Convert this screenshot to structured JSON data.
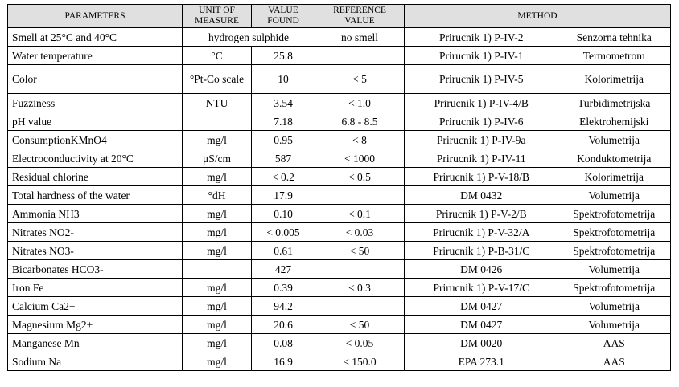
{
  "headers": {
    "parameters": "PARAMETERS",
    "unit": "UNIT OF MEASURE",
    "value": "VALUE FOUND",
    "reference": "REFERENCE VALUE",
    "method": "METHOD"
  },
  "rows": [
    {
      "param": "Smell at 25°C and 40°C",
      "unit": "hydrogen sulphide",
      "value": "",
      "ref": "no smell",
      "method_ref": "Prirucnik 1) P-IV-2",
      "technique": "Senzorna tehnika"
    },
    {
      "param": "Water temperature",
      "unit": "°C",
      "value": "25.8",
      "ref": "",
      "method_ref": "Prirucnik 1) P-IV-1",
      "technique": "Termometrom"
    },
    {
      "param": "Color",
      "unit": "°Pt-Co scale",
      "value": "10",
      "ref": "< 5",
      "method_ref": "Prirucnik 1) P-IV-5",
      "technique": "Kolorimetrija"
    },
    {
      "param": "Fuzziness",
      "unit": "NTU",
      "value": "3.54",
      "ref": "< 1.0",
      "method_ref": "Prirucnik 1) P-IV-4/B",
      "technique": "Turbidimetrijska"
    },
    {
      "param": "pH value",
      "unit": "",
      "value": "7.18",
      "ref": "6.8 - 8.5",
      "method_ref": "Prirucnik 1) P-IV-6",
      "technique": "Elektrohemijski"
    },
    {
      "param": "ConsumptionKMnO4",
      "unit": "mg/l",
      "value": "0.95",
      "ref": "< 8",
      "method_ref": "Prirucnik 1) P-IV-9a",
      "technique": "Volumetrija"
    },
    {
      "param": "Electroconductivity at 20°C",
      "unit": "μS/cm",
      "value": "587",
      "ref": "< 1000",
      "method_ref": "Prirucnik 1) P-IV-11",
      "technique": "Konduktometrija"
    },
    {
      "param": "Residual chlorine",
      "unit": "mg/l",
      "value": "< 0.2",
      "ref": "< 0.5",
      "method_ref": "Prirucnik 1) P-V-18/B",
      "technique": "Kolorimetrija"
    },
    {
      "param": "Total hardness of the water",
      "unit": "°dH",
      "value": "17.9",
      "ref": "",
      "method_ref": "DM 0432",
      "technique": "Volumetrija"
    },
    {
      "param": "Ammonia NH3",
      "unit": "mg/l",
      "value": "0.10",
      "ref": "< 0.1",
      "method_ref": "Prirucnik 1) P-V-2/B",
      "technique": "Spektrofotometrija"
    },
    {
      "param": "Nitrates NO2-",
      "unit": "mg/l",
      "value": "< 0.005",
      "ref": "< 0.03",
      "method_ref": "Prirucnik 1) P-V-32/A",
      "technique": "Spektrofotometrija"
    },
    {
      "param": "Nitrates NO3-",
      "unit": "mg/l",
      "value": "0.61",
      "ref": "< 50",
      "method_ref": "Prirucnik 1) P-B-31/C",
      "technique": "Spektrofotometrija"
    },
    {
      "param": "Bicarbonates HCO3-",
      "unit": "",
      "value": "427",
      "ref": "",
      "method_ref": "DM 0426",
      "technique": "Volumetrija"
    },
    {
      "param": "Iron Fe",
      "unit": "mg/l",
      "value": "0.39",
      "ref": "< 0.3",
      "method_ref": "Prirucnik 1) P-V-17/C",
      "technique": "Spektrofotometrija"
    },
    {
      "param": "Calcium Ca2+",
      "unit": "mg/l",
      "value": "94.2",
      "ref": "",
      "method_ref": "DM 0427",
      "technique": "Volumetrija"
    },
    {
      "param": "Magnesium Mg2+",
      "unit": "mg/l",
      "value": "20.6",
      "ref": "< 50",
      "method_ref": "DM 0427",
      "technique": "Volumetrija"
    },
    {
      "param": "Manganese Mn",
      "unit": "mg/l",
      "value": "0.08",
      "ref": "< 0.05",
      "method_ref": "DM 0020",
      "technique": "AAS"
    },
    {
      "param": "Sodium Na",
      "unit": "mg/l",
      "value": "16.9",
      "ref": "< 150.0",
      "method_ref": "EPA 273.1",
      "technique": "AAS"
    }
  ]
}
